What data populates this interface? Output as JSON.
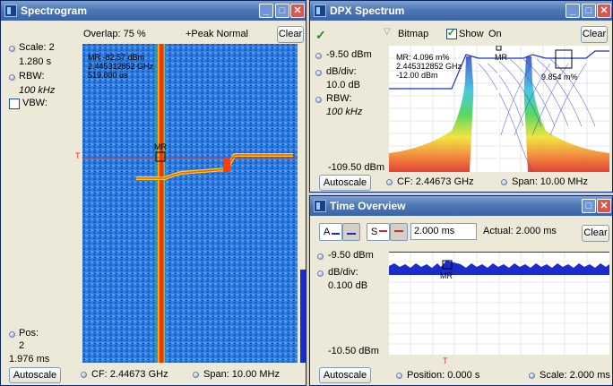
{
  "spectrogram": {
    "title": "Spectrogram",
    "overlap": "Overlap: 75 %",
    "detector": "+Peak Normal",
    "clear_label": "Clear",
    "scale_label": "Scale: 2",
    "scale_value": "1.280 s",
    "rbw_label": "RBW:",
    "rbw_value": "100 kHz",
    "vbw_label": "VBW:",
    "marker_readout": [
      "MR  -82.57 dBm",
      "2.445312852 GHz",
      "519.000 us"
    ],
    "marker_label": "MR",
    "trigger_marker": "T",
    "pos_label": "Pos:",
    "pos_value": "2",
    "pos_time": "1.976 ms",
    "autoscale_label": "Autoscale",
    "cf": "CF: 2.44673 GHz",
    "span": "Span: 10.00 MHz"
  },
  "dpx": {
    "title": "DPX Spectrum",
    "bitmap_label": "Bitmap",
    "show_label": "Show",
    "on_label": "On",
    "clear_label": "Clear",
    "ref_level": "-9.50 dBm",
    "div_label": "dB/div:",
    "div_value": "10.0 dB",
    "rbw_label": "RBW:",
    "rbw_value": "100 kHz",
    "bottom_level": "-109.50 dBm",
    "marker_readout": [
      "MR: 4.096 m%",
      "2.445312852 GHz",
      "-12.00 dBm"
    ],
    "marker_label": "MR",
    "density_label": "9.854 m%",
    "autoscale_label": "Autoscale",
    "cf": "CF: 2.44673 GHz",
    "span": "Span: 10.00 MHz"
  },
  "time_overview": {
    "title": "Time Overview",
    "a_label": "A",
    "s_label": "S",
    "time_value": "2.000 ms",
    "actual": "Actual: 2.000 ms",
    "clear_label": "Clear",
    "ref_level": "-9.50 dBm",
    "div_label": "dB/div:",
    "div_value": "0.100 dB",
    "bottom_level": "-10.50 dBm",
    "marker_label": "MR",
    "trigger_marker": "T",
    "autoscale_label": "Autoscale",
    "position": "Position: 0.000 s",
    "scale": "Scale: 2.000 ms"
  },
  "colors": {
    "titlebar": "#4f79b5",
    "trace": "#1b2ccc",
    "spectro_bg": "#2a6fd6",
    "signal_hot": "#ff2a00"
  }
}
